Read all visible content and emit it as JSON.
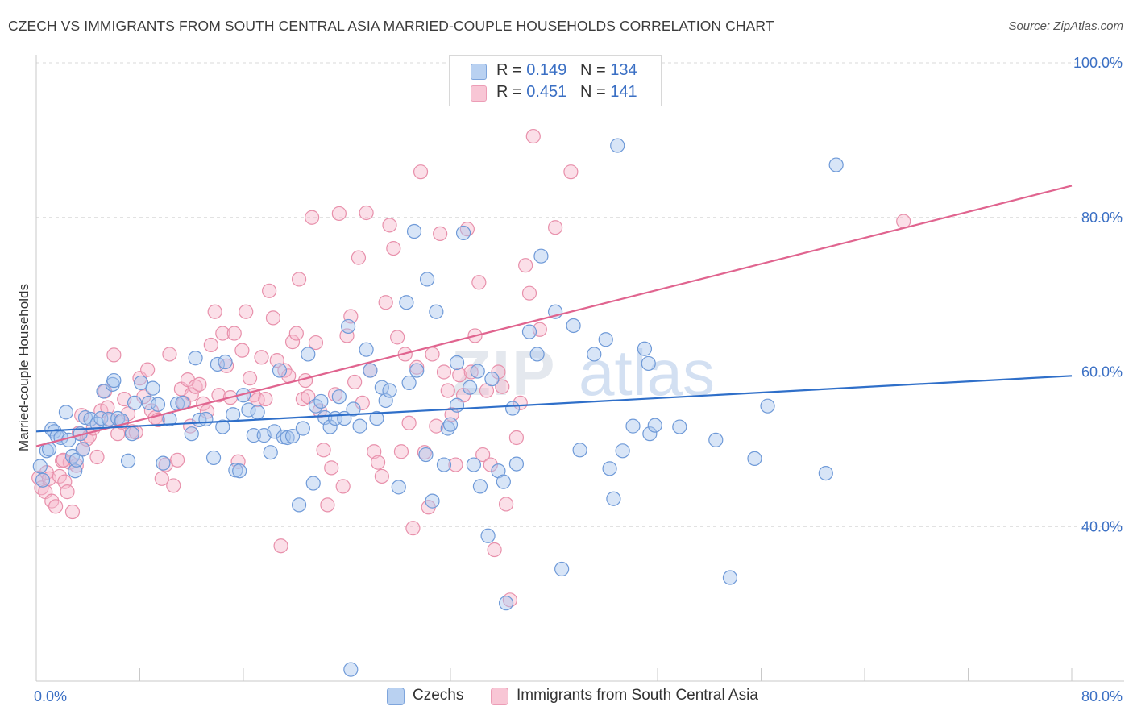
{
  "header": {
    "title": "CZECH VS IMMIGRANTS FROM SOUTH CENTRAL ASIA MARRIED-COUPLE HOUSEHOLDS CORRELATION CHART",
    "source": "Source: ZipAtlas.com"
  },
  "legend_top": {
    "rows": [
      {
        "r_label": "R = ",
        "r_value": "0.149",
        "n_label": "N = ",
        "n_value": "134"
      },
      {
        "r_label": "R = ",
        "r_value": "0.451",
        "n_label": "N = ",
        "n_value": "141"
      }
    ]
  },
  "legend_bottom": {
    "items": [
      {
        "label": "Czechs"
      },
      {
        "label": "Immigrants from South Central Asia"
      }
    ]
  },
  "colors": {
    "czech_fill": "#a9c6ee",
    "czech_stroke": "#6f9ad8",
    "czech_line": "#2f6fc9",
    "asia_fill": "#f6b9cb",
    "asia_stroke": "#e890ab",
    "asia_line": "#e0648f",
    "grid": "#d9d9d9",
    "tick_label": "#3a6fc4"
  },
  "chart_data": {
    "type": "scatter",
    "title": "CZECH VS IMMIGRANTS FROM SOUTH CENTRAL ASIA MARRIED-COUPLE HOUSEHOLDS CORRELATION CHART",
    "xlabel": "",
    "ylabel": "Married-couple Households",
    "xlim": [
      0,
      80
    ],
    "ylim": [
      20,
      100
    ],
    "x_tick_labels": [
      "0.0%",
      "80.0%"
    ],
    "y_ticks": [
      40,
      60,
      80,
      100
    ],
    "y_tick_labels": [
      "40.0%",
      "60.0%",
      "80.0%",
      "100.0%"
    ],
    "grid": true,
    "legend_position": "top-center",
    "watermark": "ZIPatlas",
    "series": [
      {
        "name": "Czechs",
        "r": 0.149,
        "n": 134,
        "trend": {
          "x": [
            0,
            80
          ],
          "y": [
            52.3,
            59.5
          ]
        },
        "points": [
          [
            0.3,
            47.8
          ],
          [
            0.5,
            46.0
          ],
          [
            0.8,
            49.8
          ],
          [
            1.0,
            50.0
          ],
          [
            1.2,
            52.6
          ],
          [
            1.4,
            52.3
          ],
          [
            1.6,
            51.7
          ],
          [
            1.9,
            51.5
          ],
          [
            2.3,
            54.8
          ],
          [
            2.5,
            51.2
          ],
          [
            2.8,
            49.1
          ],
          [
            3.0,
            47.2
          ],
          [
            3.1,
            48.6
          ],
          [
            3.4,
            52.0
          ],
          [
            3.6,
            50.0
          ],
          [
            3.8,
            54.1
          ],
          [
            4.2,
            53.9
          ],
          [
            4.7,
            53.3
          ],
          [
            5.0,
            54.0
          ],
          [
            5.2,
            57.5
          ],
          [
            5.6,
            53.9
          ],
          [
            5.9,
            58.4
          ],
          [
            6.0,
            58.9
          ],
          [
            6.3,
            54.0
          ],
          [
            6.6,
            53.7
          ],
          [
            7.4,
            52.0
          ],
          [
            7.1,
            48.5
          ],
          [
            7.6,
            56.0
          ],
          [
            8.1,
            58.6
          ],
          [
            8.7,
            56.0
          ],
          [
            9.0,
            57.9
          ],
          [
            9.4,
            55.8
          ],
          [
            9.8,
            48.2
          ],
          [
            10.3,
            53.9
          ],
          [
            10.9,
            55.9
          ],
          [
            11.3,
            56.0
          ],
          [
            12.0,
            52.0
          ],
          [
            12.3,
            61.8
          ],
          [
            12.6,
            53.8
          ],
          [
            13.1,
            53.9
          ],
          [
            13.7,
            48.9
          ],
          [
            14.0,
            61.0
          ],
          [
            14.4,
            52.9
          ],
          [
            14.6,
            61.3
          ],
          [
            15.2,
            54.5
          ],
          [
            15.4,
            47.3
          ],
          [
            15.7,
            47.2
          ],
          [
            16.0,
            57.0
          ],
          [
            16.4,
            55.1
          ],
          [
            16.8,
            51.8
          ],
          [
            17.1,
            54.8
          ],
          [
            17.6,
            51.8
          ],
          [
            18.1,
            49.6
          ],
          [
            18.4,
            52.3
          ],
          [
            18.8,
            60.2
          ],
          [
            19.1,
            51.6
          ],
          [
            19.4,
            51.5
          ],
          [
            19.8,
            51.7
          ],
          [
            20.3,
            42.8
          ],
          [
            20.6,
            52.7
          ],
          [
            21.0,
            62.3
          ],
          [
            21.4,
            45.6
          ],
          [
            21.6,
            55.6
          ],
          [
            22.0,
            56.2
          ],
          [
            22.3,
            54.1
          ],
          [
            22.7,
            52.9
          ],
          [
            23.1,
            54.0
          ],
          [
            23.4,
            56.8
          ],
          [
            23.8,
            54.0
          ],
          [
            24.1,
            65.9
          ],
          [
            24.3,
            21.5
          ],
          [
            24.5,
            55.2
          ],
          [
            25.0,
            53.0
          ],
          [
            25.5,
            62.9
          ],
          [
            25.8,
            60.2
          ],
          [
            26.3,
            54.0
          ],
          [
            26.7,
            58.0
          ],
          [
            27.0,
            56.3
          ],
          [
            27.3,
            57.6
          ],
          [
            28.0,
            45.1
          ],
          [
            28.6,
            69.0
          ],
          [
            28.8,
            58.6
          ],
          [
            29.2,
            78.2
          ],
          [
            29.4,
            60.2
          ],
          [
            30.1,
            49.3
          ],
          [
            30.2,
            72.0
          ],
          [
            30.6,
            43.3
          ],
          [
            30.9,
            67.8
          ],
          [
            31.5,
            48.0
          ],
          [
            31.8,
            52.7
          ],
          [
            32.0,
            53.2
          ],
          [
            32.5,
            55.7
          ],
          [
            32.5,
            61.2
          ],
          [
            33.0,
            78.0
          ],
          [
            33.5,
            58.0
          ],
          [
            34.1,
            60.1
          ],
          [
            33.8,
            48.0
          ],
          [
            34.3,
            45.2
          ],
          [
            34.9,
            38.8
          ],
          [
            35.2,
            59.1
          ],
          [
            35.7,
            47.2
          ],
          [
            36.1,
            45.8
          ],
          [
            36.3,
            30.1
          ],
          [
            36.8,
            55.3
          ],
          [
            37.1,
            48.1
          ],
          [
            38.1,
            65.2
          ],
          [
            38.7,
            62.3
          ],
          [
            39.0,
            75.0
          ],
          [
            40.1,
            67.8
          ],
          [
            40.6,
            34.5
          ],
          [
            41.5,
            66.0
          ],
          [
            42.0,
            49.9
          ],
          [
            43.1,
            62.3
          ],
          [
            44.0,
            64.2
          ],
          [
            44.3,
            47.5
          ],
          [
            44.6,
            43.6
          ],
          [
            44.9,
            89.3
          ],
          [
            45.3,
            49.8
          ],
          [
            46.1,
            53.0
          ],
          [
            47.0,
            63.0
          ],
          [
            47.3,
            61.1
          ],
          [
            47.4,
            52.0
          ],
          [
            47.8,
            53.1
          ],
          [
            49.7,
            52.9
          ],
          [
            52.5,
            51.2
          ],
          [
            53.6,
            33.4
          ],
          [
            55.5,
            48.8
          ],
          [
            56.5,
            55.6
          ],
          [
            61.0,
            46.9
          ],
          [
            61.8,
            86.8
          ]
        ]
      },
      {
        "name": "Immigrants from South Central Asia",
        "r": 0.451,
        "n": 141,
        "trend": {
          "x": [
            0,
            80
          ],
          "y": [
            50.4,
            84.1
          ]
        },
        "points": [
          [
            0.2,
            46.3
          ],
          [
            0.4,
            45.0
          ],
          [
            0.7,
            44.5
          ],
          [
            0.8,
            47.0
          ],
          [
            1.0,
            46.2
          ],
          [
            1.2,
            43.3
          ],
          [
            1.5,
            42.6
          ],
          [
            1.8,
            46.5
          ],
          [
            2.0,
            48.5
          ],
          [
            2.2,
            45.8
          ],
          [
            2.4,
            44.5
          ],
          [
            2.6,
            48.3
          ],
          [
            2.8,
            41.9
          ],
          [
            3.1,
            47.9
          ],
          [
            3.3,
            52.1
          ],
          [
            3.5,
            54.4
          ],
          [
            3.6,
            50.0
          ],
          [
            3.9,
            51.3
          ],
          [
            4.1,
            51.7
          ],
          [
            4.4,
            52.7
          ],
          [
            4.7,
            49.0
          ],
          [
            5.0,
            55.0
          ],
          [
            5.3,
            57.5
          ],
          [
            5.5,
            55.4
          ],
          [
            5.8,
            53.8
          ],
          [
            6.0,
            62.2
          ],
          [
            6.3,
            52.0
          ],
          [
            6.6,
            53.5
          ],
          [
            6.8,
            56.5
          ],
          [
            7.1,
            54.6
          ],
          [
            7.4,
            52.3
          ],
          [
            7.7,
            52.2
          ],
          [
            8.0,
            59.2
          ],
          [
            8.3,
            56.8
          ],
          [
            8.6,
            60.3
          ],
          [
            8.9,
            55.0
          ],
          [
            9.2,
            54.1
          ],
          [
            9.4,
            53.8
          ],
          [
            9.7,
            46.2
          ],
          [
            10.0,
            48.0
          ],
          [
            10.3,
            62.3
          ],
          [
            10.6,
            45.3
          ],
          [
            10.9,
            48.6
          ],
          [
            11.2,
            57.8
          ],
          [
            11.4,
            56.0
          ],
          [
            11.7,
            59.0
          ],
          [
            12.0,
            57.1
          ],
          [
            12.3,
            58.1
          ],
          [
            12.6,
            58.4
          ],
          [
            12.9,
            55.9
          ],
          [
            13.2,
            54.9
          ],
          [
            13.5,
            63.5
          ],
          [
            13.8,
            67.8
          ],
          [
            14.1,
            57.0
          ],
          [
            14.4,
            65.0
          ],
          [
            14.7,
            60.8
          ],
          [
            15.0,
            56.7
          ],
          [
            15.3,
            65.0
          ],
          [
            15.6,
            48.4
          ],
          [
            15.9,
            62.8
          ],
          [
            16.2,
            67.8
          ],
          [
            16.5,
            59.2
          ],
          [
            16.8,
            57.0
          ],
          [
            17.1,
            56.4
          ],
          [
            17.4,
            61.9
          ],
          [
            17.7,
            56.5
          ],
          [
            18.0,
            70.5
          ],
          [
            18.3,
            67.0
          ],
          [
            18.6,
            61.5
          ],
          [
            18.9,
            37.5
          ],
          [
            19.2,
            60.2
          ],
          [
            19.5,
            59.5
          ],
          [
            19.8,
            63.9
          ],
          [
            20.1,
            65.0
          ],
          [
            20.3,
            72.0
          ],
          [
            20.6,
            56.5
          ],
          [
            21.0,
            56.8
          ],
          [
            21.3,
            80.0
          ],
          [
            21.6,
            63.8
          ],
          [
            21.9,
            55.0
          ],
          [
            22.2,
            49.9
          ],
          [
            22.5,
            42.8
          ],
          [
            22.8,
            47.6
          ],
          [
            23.1,
            57.1
          ],
          [
            23.4,
            80.5
          ],
          [
            23.7,
            45.2
          ],
          [
            24.0,
            64.7
          ],
          [
            24.3,
            67.2
          ],
          [
            24.6,
            58.7
          ],
          [
            24.9,
            74.8
          ],
          [
            25.2,
            56.0
          ],
          [
            25.5,
            80.6
          ],
          [
            25.8,
            60.2
          ],
          [
            26.1,
            49.7
          ],
          [
            26.4,
            48.3
          ],
          [
            26.7,
            46.5
          ],
          [
            27.0,
            69.0
          ],
          [
            27.3,
            79.0
          ],
          [
            27.6,
            76.0
          ],
          [
            27.9,
            64.5
          ],
          [
            28.2,
            49.7
          ],
          [
            28.5,
            62.3
          ],
          [
            28.8,
            53.4
          ],
          [
            29.1,
            39.8
          ],
          [
            29.4,
            60.6
          ],
          [
            29.7,
            85.9
          ],
          [
            30.0,
            49.6
          ],
          [
            30.3,
            42.5
          ],
          [
            30.6,
            62.3
          ],
          [
            30.9,
            53.0
          ],
          [
            31.2,
            77.9
          ],
          [
            31.5,
            60.0
          ],
          [
            31.8,
            57.6
          ],
          [
            32.1,
            54.5
          ],
          [
            32.4,
            48.0
          ],
          [
            32.7,
            59.6
          ],
          [
            33.0,
            57.0
          ],
          [
            33.3,
            78.5
          ],
          [
            33.6,
            60.0
          ],
          [
            33.9,
            64.7
          ],
          [
            34.2,
            71.6
          ],
          [
            34.5,
            49.3
          ],
          [
            34.8,
            57.6
          ],
          [
            35.1,
            48.0
          ],
          [
            35.4,
            37.0
          ],
          [
            35.7,
            60.0
          ],
          [
            36.0,
            58.1
          ],
          [
            36.3,
            42.9
          ],
          [
            36.6,
            30.5
          ],
          [
            37.1,
            51.5
          ],
          [
            37.4,
            56.0
          ],
          [
            37.8,
            73.8
          ],
          [
            38.1,
            70.2
          ],
          [
            38.4,
            90.5
          ],
          [
            38.9,
            65.5
          ],
          [
            40.1,
            78.7
          ],
          [
            41.3,
            85.9
          ],
          [
            67.0,
            79.5
          ],
          [
            2.1,
            48.6
          ],
          [
            11.9,
            53.0
          ],
          [
            20.8,
            58.9
          ]
        ]
      }
    ]
  }
}
